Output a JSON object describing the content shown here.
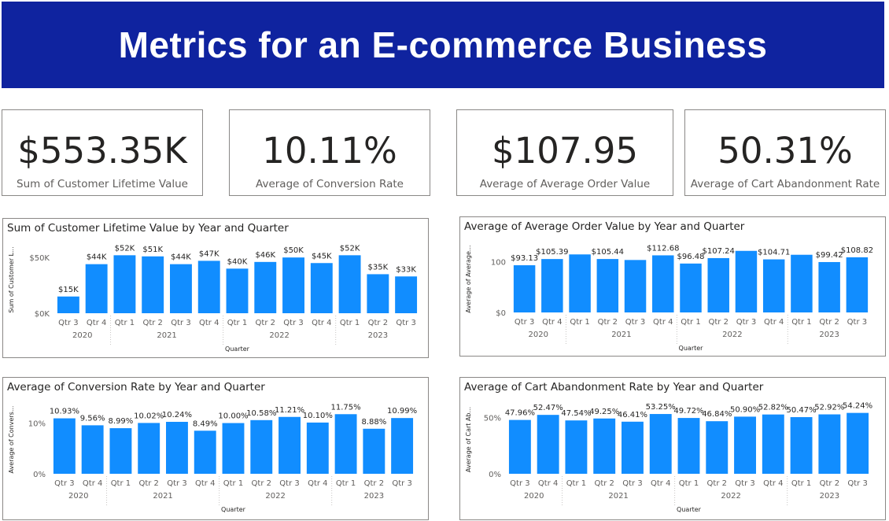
{
  "header": {
    "title": "Metrics for an E-commerce Business"
  },
  "cards": [
    {
      "value": "$553.35K",
      "label": "Sum of Customer Lifetime Value"
    },
    {
      "value": "10.11%",
      "label": "Average of Conversion Rate"
    },
    {
      "value": "$107.95",
      "label": "Average of Average Order Value"
    },
    {
      "value": "50.31%",
      "label": "Average of Cart Abandonment Rate"
    }
  ],
  "colors": {
    "banner": "#0f239f",
    "bar": "#118dff",
    "text": "#252423",
    "muted": "#605e5c"
  },
  "chart_data": [
    {
      "type": "bar",
      "title": "Sum of Customer Lifetime Value by Year and Quarter",
      "xlabel": "Quarter",
      "ylabel": "Sum of Customer L...",
      "categories": [
        "Qtr 3",
        "Qtr 4",
        "Qtr 1",
        "Qtr 2",
        "Qtr 3",
        "Qtr 4",
        "Qtr 1",
        "Qtr 2",
        "Qtr 3",
        "Qtr 4",
        "Qtr 1",
        "Qtr 2",
        "Qtr 3"
      ],
      "years": [
        {
          "label": "2020",
          "count": 2
        },
        {
          "label": "2021",
          "count": 4
        },
        {
          "label": "2022",
          "count": 4
        },
        {
          "label": "2023",
          "count": 3
        }
      ],
      "values": [
        15,
        44,
        52,
        51,
        44,
        47,
        40,
        46,
        50,
        45,
        52,
        35,
        33
      ],
      "labels": [
        "$15K",
        "$44K",
        "$52K",
        "$51K",
        "$44K",
        "$47K",
        "$40K",
        "$46K",
        "$50K",
        "$45K",
        "$52K",
        "$35K",
        "$33K"
      ],
      "yticks": [
        {
          "value": 0,
          "label": "$0K"
        },
        {
          "value": 50,
          "label": "$50K"
        }
      ],
      "ylim": [
        0,
        60
      ]
    },
    {
      "type": "bar",
      "title": "Average of Average Order Value by Year and Quarter",
      "xlabel": "Quarter",
      "ylabel": "Average of Average...",
      "categories": [
        "Qtr 3",
        "Qtr 4",
        "Qtr 1",
        "Qtr 2",
        "Qtr 3",
        "Qtr 4",
        "Qtr 1",
        "Qtr 2",
        "Qtr 3",
        "Qtr 4",
        "Qtr 1",
        "Qtr 2",
        "Qtr 3"
      ],
      "years": [
        {
          "label": "2020",
          "count": 2
        },
        {
          "label": "2021",
          "count": 4
        },
        {
          "label": "2022",
          "count": 4
        },
        {
          "label": "2023",
          "count": 3
        }
      ],
      "values": [
        93.13,
        105.39,
        114.5,
        105.44,
        103.5,
        112.68,
        96.48,
        107.24,
        121.5,
        104.71,
        113.8,
        99.42,
        108.82
      ],
      "labels": [
        "$93.13",
        "$105.39",
        "",
        "$105.44",
        "",
        "$112.68",
        "$96.48",
        "$107.24",
        "",
        "$104.71",
        "",
        "$99.42",
        "$108.82"
      ],
      "yticks": [
        {
          "value": 0,
          "label": "$0"
        },
        {
          "value": 100,
          "label": "100"
        }
      ],
      "ylim": [
        0,
        132
      ]
    },
    {
      "type": "bar",
      "title": "Average of Conversion Rate by Year and Quarter",
      "xlabel": "Quarter",
      "ylabel": "Average of Convers...",
      "categories": [
        "Qtr 3",
        "Qtr 4",
        "Qtr 1",
        "Qtr 2",
        "Qtr 3",
        "Qtr 4",
        "Qtr 1",
        "Qtr 2",
        "Qtr 3",
        "Qtr 4",
        "Qtr 1",
        "Qtr 2",
        "Qtr 3"
      ],
      "years": [
        {
          "label": "2020",
          "count": 2
        },
        {
          "label": "2021",
          "count": 4
        },
        {
          "label": "2022",
          "count": 4
        },
        {
          "label": "2023",
          "count": 3
        }
      ],
      "values": [
        10.93,
        9.56,
        8.99,
        10.02,
        10.24,
        8.49,
        10.0,
        10.58,
        11.21,
        10.1,
        11.75,
        8.88,
        10.99
      ],
      "labels": [
        "10.93%",
        "9.56%",
        "8.99%",
        "10.02%",
        "10.24%",
        "8.49%",
        "10.00%",
        "10.58%",
        "11.21%",
        "10.10%",
        "11.75%",
        "8.88%",
        "10.99%"
      ],
      "yticks": [
        {
          "value": 0,
          "label": "0%"
        },
        {
          "value": 10,
          "label": "10%"
        }
      ],
      "ylim": [
        0,
        13.5
      ]
    },
    {
      "type": "bar",
      "title": "Average of Cart Abandonment Rate by Year and Quarter",
      "xlabel": "Quarter",
      "ylabel": "Average of Cart Ab...",
      "categories": [
        "Qtr 3",
        "Qtr 4",
        "Qtr 1",
        "Qtr 2",
        "Qtr 3",
        "Qtr 4",
        "Qtr 1",
        "Qtr 2",
        "Qtr 3",
        "Qtr 4",
        "Qtr 1",
        "Qtr 2",
        "Qtr 3"
      ],
      "years": [
        {
          "label": "2020",
          "count": 2
        },
        {
          "label": "2021",
          "count": 4
        },
        {
          "label": "2022",
          "count": 4
        },
        {
          "label": "2023",
          "count": 3
        }
      ],
      "values": [
        47.96,
        52.47,
        47.54,
        49.25,
        46.41,
        53.25,
        49.72,
        46.84,
        50.9,
        52.82,
        50.47,
        52.92,
        54.24
      ],
      "labels": [
        "47.96%",
        "52.47%",
        "47.54%",
        "49.25%",
        "46.41%",
        "53.25%",
        "49.72%",
        "46.84%",
        "50.90%",
        "52.82%",
        "50.47%",
        "52.92%",
        "54.24%"
      ],
      "yticks": [
        {
          "value": 0,
          "label": "0%"
        },
        {
          "value": 50,
          "label": "50%"
        }
      ],
      "ylim": [
        0,
        61
      ]
    }
  ]
}
